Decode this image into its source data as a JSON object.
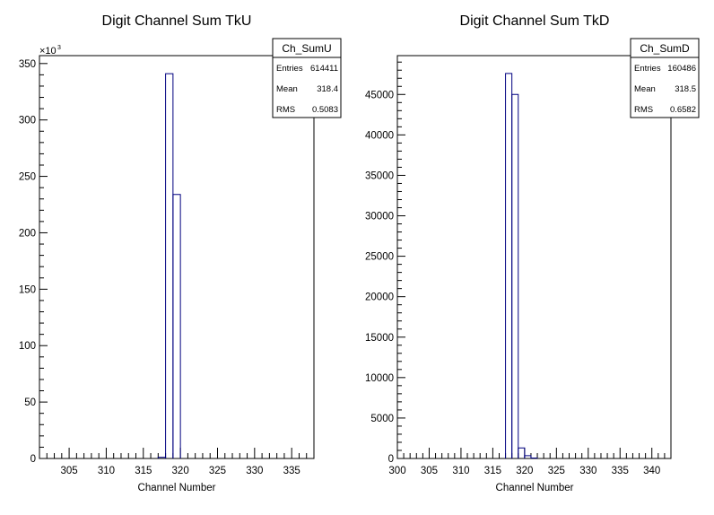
{
  "chart_data": [
    {
      "type": "histogram",
      "title": "Digit Channel Sum TkU",
      "xlabel": "Channel Number",
      "ylabel": "",
      "xlim": [
        301,
        338
      ],
      "ylim": [
        0,
        357
      ],
      "y_multiplier_label": "×10",
      "y_multiplier_exp": "3",
      "x_ticks": [
        305,
        310,
        315,
        320,
        325,
        330,
        335
      ],
      "y_ticks": [
        0,
        50,
        100,
        150,
        200,
        250,
        300,
        350
      ],
      "line_color": "#000080",
      "bins": [
        {
          "x0": 317,
          "x1": 318,
          "y": 1
        },
        {
          "x0": 318,
          "x1": 319,
          "y": 341
        },
        {
          "x0": 319,
          "x1": 320,
          "y": 234
        }
      ],
      "stats": {
        "name": "Ch_SumU",
        "rows": [
          {
            "label": "Entries",
            "value": "614411"
          },
          {
            "label": "Mean",
            "value": "318.4"
          },
          {
            "label": "RMS",
            "value": "0.5083"
          }
        ]
      }
    },
    {
      "type": "histogram",
      "title": "Digit Channel Sum TkD",
      "xlabel": "Channel Number",
      "ylabel": "",
      "xlim": [
        300,
        343
      ],
      "ylim": [
        0,
        49800
      ],
      "x_ticks": [
        300,
        305,
        310,
        315,
        320,
        325,
        330,
        335,
        340
      ],
      "y_ticks": [
        0,
        5000,
        10000,
        15000,
        20000,
        25000,
        30000,
        35000,
        40000,
        45000
      ],
      "line_color": "#000080",
      "bins": [
        {
          "x0": 317,
          "x1": 318,
          "y": 47600
        },
        {
          "x0": 318,
          "x1": 319,
          "y": 45000
        },
        {
          "x0": 319,
          "x1": 320,
          "y": 1300
        },
        {
          "x0": 320,
          "x1": 321,
          "y": 350
        },
        {
          "x0": 321,
          "x1": 322,
          "y": 60
        }
      ],
      "stats": {
        "name": "Ch_SumD",
        "rows": [
          {
            "label": "Entries",
            "value": "160486"
          },
          {
            "label": "Mean",
            "value": "318.5"
          },
          {
            "label": "RMS",
            "value": "0.6582"
          }
        ]
      }
    }
  ]
}
